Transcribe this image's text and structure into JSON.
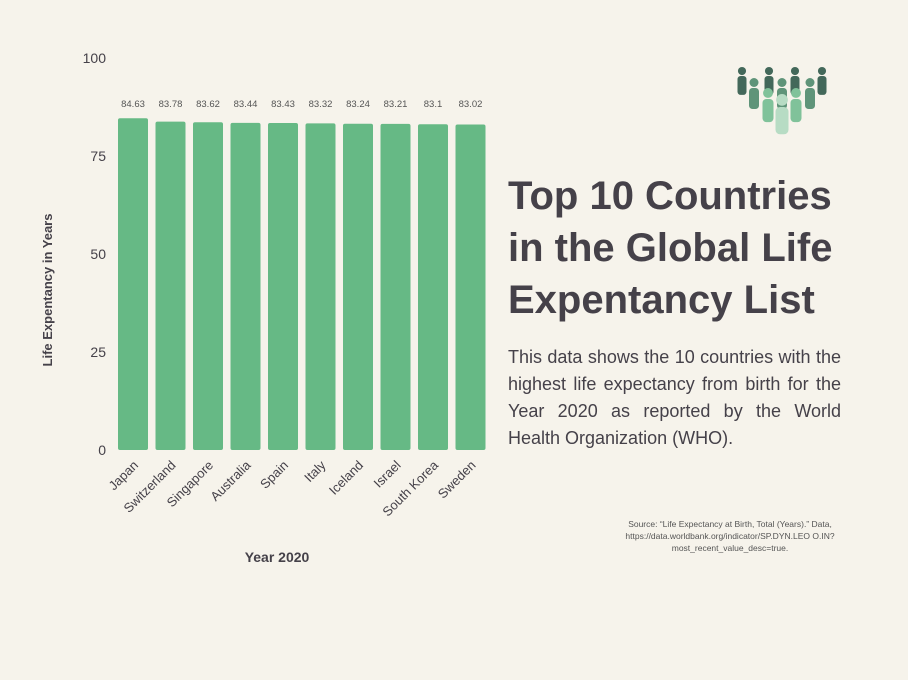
{
  "title": "Top 10 Countries in the Global Life Expentancy List",
  "description": "This data shows the 10 countries with the highest life expectancy from birth for the Year 2020 as reported by the World Health Organization (WHO).",
  "source": "Source: “Life Expectancy at Birth, Total (Years).” Data, https://data.worldbank.org/indicator/SP.DYN.LEO O.IN?most_recent_value_desc=true.",
  "icon": "people-group-icon",
  "chart_data": {
    "type": "bar",
    "categories": [
      "Japan",
      "Switzerland",
      "Singapore",
      "Australia",
      "Spain",
      "Italy",
      "Iceland",
      "Israel",
      "South Korea",
      "Sweden"
    ],
    "values": [
      84.63,
      83.78,
      83.62,
      83.44,
      83.43,
      83.32,
      83.24,
      83.21,
      83.1,
      83.02
    ],
    "value_labels": [
      "84.63",
      "83.78",
      "83.62",
      "83.44",
      "83.43",
      "83.32",
      "83.24",
      "83.21",
      "83.1",
      "83.02"
    ],
    "xlabel": "Year 2020",
    "ylabel": "Life Expentancy in Years",
    "ylim": [
      0,
      100
    ],
    "yticks": [
      0,
      25,
      50,
      75,
      100
    ],
    "grid": false,
    "bar_color": "#66b985"
  }
}
